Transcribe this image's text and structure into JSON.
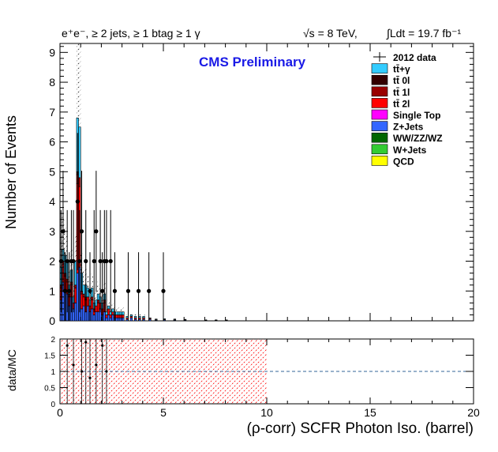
{
  "chart_data": [
    {
      "type": "bar",
      "stacked": true,
      "title": "",
      "header_left": "e⁺e⁻, ≥ 2 jets, ≥ 1 btag ≥ 1 γ",
      "header_energy": "√s = 8 TeV,",
      "header_lumi": "∫Ldt = 19.7 fb⁻¹",
      "watermark": "CMS Preliminary",
      "ylabel": "Number of Events",
      "xlabel": "(ρ-corr) SCFR Photon Iso. (barrel)",
      "xlim": [
        0,
        20
      ],
      "ylim": [
        0,
        9.3
      ],
      "yticks": [
        "0",
        "1",
        "2",
        "3",
        "4",
        "5",
        "6",
        "7",
        "8",
        "9"
      ],
      "xticks": [
        "0",
        "5",
        "10",
        "15",
        "20"
      ],
      "bin_width": 0.1,
      "bins_start": [
        0.0,
        0.1,
        0.2,
        0.3,
        0.4,
        0.5,
        0.6,
        0.7,
        0.8,
        0.9,
        1.0,
        1.1,
        1.2,
        1.3,
        1.4,
        1.5,
        1.6,
        1.7,
        1.8,
        1.9,
        2.0,
        2.1,
        2.2,
        2.3,
        2.4,
        2.5,
        2.6,
        2.7,
        2.8,
        2.9,
        3.0,
        3.2,
        3.4,
        3.6,
        3.8,
        4.0,
        4.3,
        4.6,
        5.0,
        5.5,
        6.0,
        7.0,
        7.5,
        8.0
      ],
      "legend": [
        {
          "label": "2012 data",
          "color": "#000000",
          "marker": "data"
        },
        {
          "label": "tt̄+γ",
          "color": "#33ccff"
        },
        {
          "label": "tt̄ 0l",
          "color": "#330000"
        },
        {
          "label": "tt̄ 1l",
          "color": "#990000"
        },
        {
          "label": "tt̄ 2l",
          "color": "#ff0000"
        },
        {
          "label": "Single Top",
          "color": "#ff00ff"
        },
        {
          "label": "Z+Jets",
          "color": "#3366ff"
        },
        {
          "label": "WW/ZZ/WZ",
          "color": "#006600"
        },
        {
          "label": "W+Jets",
          "color": "#33cc33"
        },
        {
          "label": "QCD",
          "color": "#ffff00"
        }
      ],
      "series": [
        {
          "name": "Z+Jets",
          "color": "#3366ff",
          "values": [
            0.7,
            1.3,
            1.0,
            0.9,
            0.5,
            0.8,
            0.4,
            0.6,
            1.6,
            1.8,
            0.4,
            0.5,
            0.3,
            0.5,
            0.3,
            0.4,
            0.2,
            0.3,
            0.3,
            0.4,
            0.2,
            0.3,
            0.1,
            0.2,
            0.1,
            0.2,
            0.1,
            0.1,
            0.1,
            0.1,
            0.1,
            0.05,
            0.1,
            0.05,
            0.05,
            0.05,
            0.05,
            0.02,
            0.03,
            0.02,
            0.02,
            0.01,
            0.01,
            0.01
          ]
        },
        {
          "name": "tt̄ 2l",
          "color": "#ff0000",
          "values": [
            0.4,
            0.6,
            0.5,
            0.4,
            0.3,
            0.4,
            0.2,
            0.5,
            3.0,
            2.7,
            0.5,
            0.3,
            0.4,
            0.3,
            0.2,
            0.3,
            0.2,
            0.2,
            0.3,
            0.2,
            0.2,
            0.3,
            0.1,
            0.2,
            0.1,
            0.1,
            0.1,
            0.1,
            0.1,
            0.1,
            0.1,
            0.05,
            0.05,
            0.05,
            0.05,
            0.05,
            0.03,
            0.02,
            0.02,
            0.02,
            0.02,
            0.01,
            0.01,
            0.01
          ]
        },
        {
          "name": "tt̄ 1l",
          "color": "#990000",
          "values": [
            0.1,
            0.1,
            0.1,
            0.1,
            0.1,
            0.1,
            0.0,
            0.1,
            0.3,
            0.3,
            0.1,
            0.1,
            0.1,
            0.0,
            0.0,
            0.1,
            0.0,
            0.0,
            0.1,
            0.0,
            0.0,
            0.1,
            0.0,
            0.0,
            0.0,
            0.0,
            0.0,
            0.0,
            0.0,
            0.0,
            0.0,
            0.0,
            0.0,
            0.0,
            0.0,
            0.0,
            0.0,
            0.0,
            0.0,
            0.0,
            0.0,
            0.0,
            0.0,
            0.0
          ]
        },
        {
          "name": "tt̄ 0l",
          "color": "#330000",
          "values": [
            0.0,
            0.0,
            0.0,
            0.0,
            0.0,
            0.0,
            0.0,
            0.0,
            0.1,
            0.0,
            0.0,
            0.0,
            0.0,
            0.0,
            0.0,
            0.0,
            0.0,
            0.0,
            0.0,
            0.0,
            0.0,
            0.0,
            0.0,
            0.0,
            0.0,
            0.0,
            0.0,
            0.0,
            0.0,
            0.0,
            0.0,
            0.0,
            0.0,
            0.0,
            0.0,
            0.0,
            0.0,
            0.0,
            0.0,
            0.0,
            0.0,
            0.0,
            0.0,
            0.0
          ]
        },
        {
          "name": "tt̄+γ",
          "color": "#33ccff",
          "values": [
            0.6,
            0.4,
            0.6,
            0.6,
            0.3,
            0.4,
            0.2,
            0.8,
            1.8,
            1.7,
            0.6,
            0.3,
            0.4,
            0.3,
            0.2,
            0.3,
            0.2,
            0.2,
            0.2,
            0.2,
            0.2,
            0.2,
            0.1,
            0.1,
            0.1,
            0.1,
            0.1,
            0.1,
            0.1,
            0.1,
            0.1,
            0.05,
            0.05,
            0.05,
            0.05,
            0.05,
            0.02,
            0.02,
            0.02,
            0.02,
            0.01,
            0.01,
            0.01,
            0.01
          ]
        }
      ],
      "data_points": {
        "x": [
          0.05,
          0.15,
          0.25,
          0.35,
          0.45,
          0.55,
          0.65,
          0.85,
          0.95,
          1.05,
          1.25,
          1.45,
          1.65,
          1.75,
          1.95,
          2.05,
          2.15,
          2.25,
          2.45,
          2.65,
          3.3,
          3.8,
          4.3,
          5.0
        ],
        "y": [
          2,
          3,
          1,
          2,
          1,
          2,
          2,
          4,
          2,
          3,
          2,
          1,
          2,
          3,
          2,
          1,
          2,
          2,
          2,
          1,
          1,
          1,
          1,
          1
        ]
      }
    },
    {
      "type": "scatter",
      "ylabel": "data/MC",
      "xlim": [
        0,
        20
      ],
      "ylim": [
        0,
        2
      ],
      "yticks": [
        "0",
        "0.5",
        "1",
        "1.5",
        "2"
      ],
      "reference_line": 1,
      "uncertainty_band_x": [
        0.0,
        10.0
      ],
      "ratio_points": {
        "x": [
          0.35,
          0.65,
          1.05,
          1.25,
          1.45,
          1.75,
          2.05,
          2.25
        ],
        "y": [
          1.8,
          1.2,
          1.0,
          1.9,
          0.8,
          1.2,
          1.8,
          1.0
        ]
      }
    }
  ]
}
